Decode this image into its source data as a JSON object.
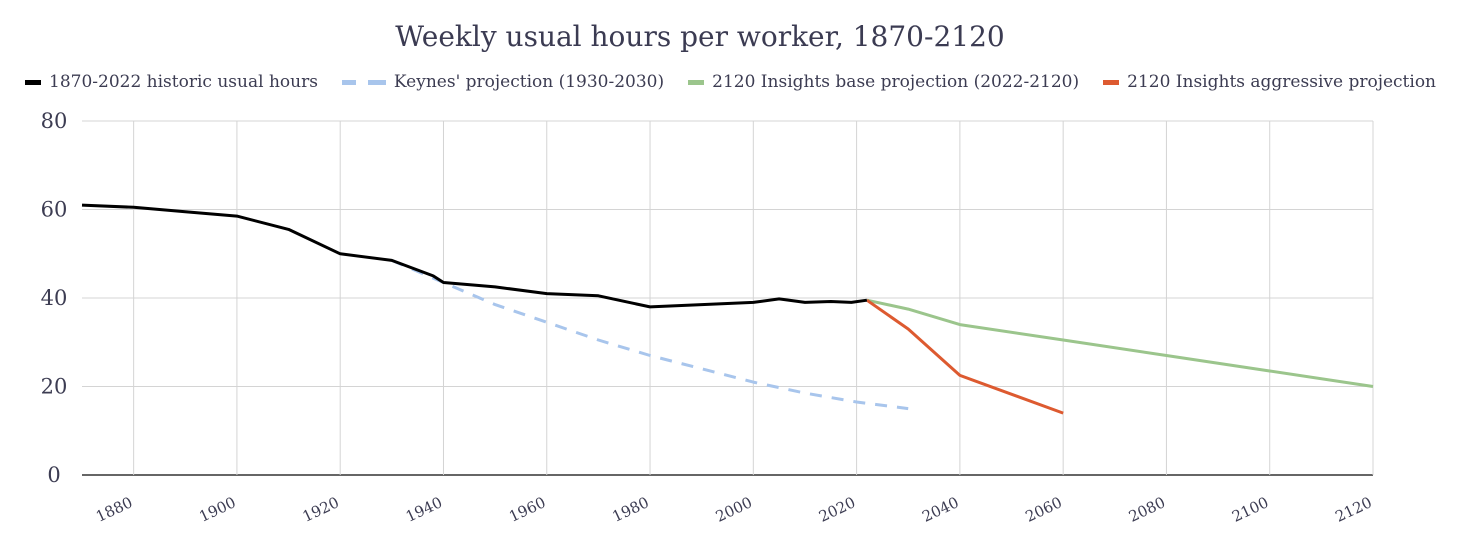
{
  "chart_data": {
    "type": "line",
    "title": "Weekly usual hours per worker, 1870-2120",
    "xlabel": "",
    "ylabel": "",
    "xlim": [
      1870,
      2120
    ],
    "ylim": [
      0,
      80
    ],
    "yticks": [
      0,
      20,
      40,
      60,
      80
    ],
    "xticks": [
      1880,
      1900,
      1920,
      1940,
      1960,
      1980,
      2000,
      2020,
      2040,
      2060,
      2080,
      2100,
      2120
    ],
    "grid": true,
    "legend_position": "top",
    "series": [
      {
        "name": "1870-2022 historic usual hours",
        "color": "#000000",
        "style": "solid",
        "x": [
          1870,
          1880,
          1890,
          1900,
          1910,
          1920,
          1930,
          1938,
          1940,
          1950,
          1960,
          1970,
          1980,
          1990,
          2000,
          2005,
          2010,
          2015,
          2019,
          2022
        ],
        "y": [
          61,
          60.5,
          59.5,
          58.5,
          55.5,
          50,
          48.5,
          45,
          43.5,
          42.5,
          41,
          40.5,
          38,
          38.5,
          39,
          39.8,
          39,
          39.2,
          39,
          39.5
        ]
      },
      {
        "name": "Keynes' projection (1930-2030)",
        "color": "#a8c5ec",
        "style": "dashed",
        "x": [
          1930,
          1940,
          1950,
          1960,
          1970,
          1980,
          1990,
          2000,
          2010,
          2020,
          2030
        ],
        "y": [
          48.5,
          43.5,
          38.5,
          34.5,
          30.5,
          27,
          24,
          21,
          18.5,
          16.5,
          15
        ]
      },
      {
        "name": "2120 Insights base projection (2022-2120)",
        "color": "#9bc58c",
        "style": "solid",
        "x": [
          2022,
          2030,
          2040,
          2060,
          2080,
          2100,
          2120
        ],
        "y": [
          39.5,
          37.5,
          34,
          30.5,
          27,
          23.5,
          20
        ]
      },
      {
        "name": "2120 Insights aggressive projection",
        "color": "#dd5a30",
        "style": "solid",
        "x": [
          2022,
          2030,
          2040,
          2060
        ],
        "y": [
          39.5,
          33,
          22.5,
          14
        ]
      }
    ]
  }
}
